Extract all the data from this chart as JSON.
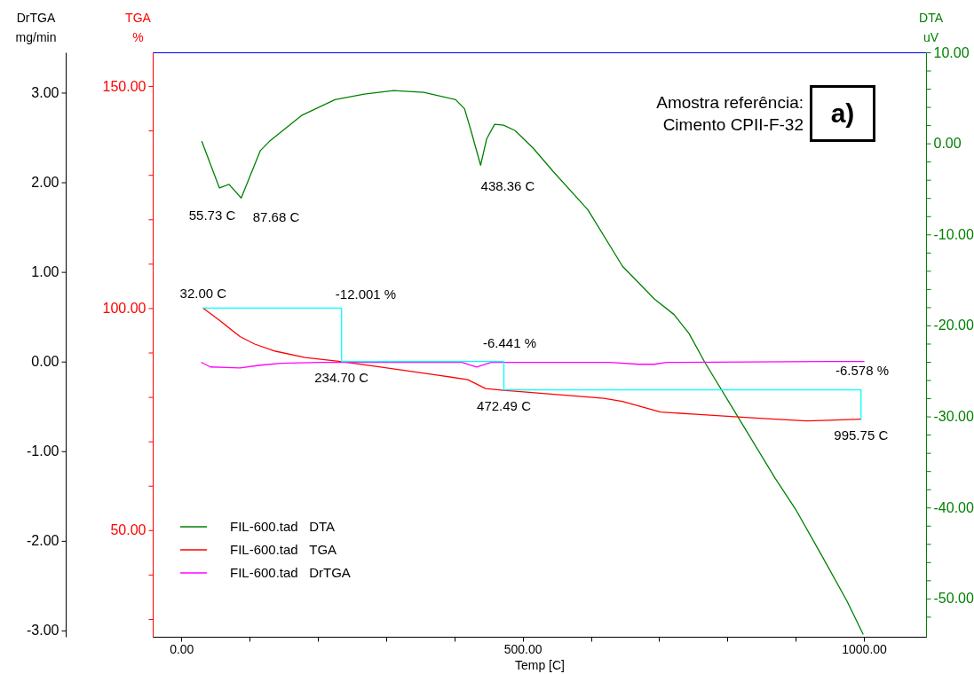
{
  "chart_data": {
    "type": "line",
    "xlabel": "Temp  [C]",
    "ylabel": "TGA\n%",
    "y2label": "DTA\nuV",
    "y3label": "DrTGA\nmg/min",
    "xlim": [
      -42,
      1091
    ],
    "xticks": [
      {
        "value": 0,
        "label": "0.00"
      },
      {
        "value": 100,
        "label": null
      },
      {
        "value": 200,
        "label": null
      },
      {
        "value": 300,
        "label": null
      },
      {
        "value": 400,
        "label": null
      },
      {
        "value": 500,
        "label": "500.00"
      },
      {
        "value": 600,
        "label": null
      },
      {
        "value": 700,
        "label": null
      },
      {
        "value": 800,
        "label": null
      },
      {
        "value": 900,
        "label": null
      },
      {
        "value": 1000,
        "label": "1000.00"
      }
    ],
    "ylim": [
      26,
      157.6
    ],
    "yticks": [
      {
        "value": 30,
        "label": null
      },
      {
        "value": 40,
        "label": null
      },
      {
        "value": 50,
        "label": "50.00"
      },
      {
        "value": 60,
        "label": null
      },
      {
        "value": 70,
        "label": null
      },
      {
        "value": 80,
        "label": null
      },
      {
        "value": 90,
        "label": null
      },
      {
        "value": 100,
        "label": "100.00"
      },
      {
        "value": 110,
        "label": null
      },
      {
        "value": 120,
        "label": null
      },
      {
        "value": 130,
        "label": null
      },
      {
        "value": 140,
        "label": null
      },
      {
        "value": 150,
        "label": "150.00"
      }
    ],
    "y2lim": [
      -54.2,
      10
    ],
    "y2ticks": [
      {
        "value": -52,
        "label": null
      },
      {
        "value": -50,
        "label": "-50.00"
      },
      {
        "value": -48,
        "label": null
      },
      {
        "value": -46,
        "label": null
      },
      {
        "value": -44,
        "label": null
      },
      {
        "value": -42,
        "label": null
      },
      {
        "value": -40,
        "label": "-40.00"
      },
      {
        "value": -38,
        "label": null
      },
      {
        "value": -36,
        "label": null
      },
      {
        "value": -34,
        "label": null
      },
      {
        "value": -32,
        "label": null
      },
      {
        "value": -30,
        "label": "-30.00"
      },
      {
        "value": -28,
        "label": null
      },
      {
        "value": -26,
        "label": null
      },
      {
        "value": -24,
        "label": null
      },
      {
        "value": -22,
        "label": null
      },
      {
        "value": -20,
        "label": "-20.00"
      },
      {
        "value": -18,
        "label": null
      },
      {
        "value": -16,
        "label": null
      },
      {
        "value": -14,
        "label": null
      },
      {
        "value": -12,
        "label": null
      },
      {
        "value": -10,
        "label": "-10.00"
      },
      {
        "value": -8,
        "label": null
      },
      {
        "value": -6,
        "label": null
      },
      {
        "value": -4,
        "label": null
      },
      {
        "value": -2,
        "label": null
      },
      {
        "value": 0,
        "label": "0.00"
      },
      {
        "value": 2,
        "label": null
      },
      {
        "value": 4,
        "label": null
      },
      {
        "value": 6,
        "label": null
      },
      {
        "value": 8,
        "label": null
      },
      {
        "value": 10,
        "label": "10.00"
      }
    ],
    "y3lim": [
      -3.07,
      3.45
    ],
    "y3ticks": [
      {
        "value": -3,
        "label": "-3.00"
      },
      {
        "value": -2,
        "label": "-2.00"
      },
      {
        "value": -1,
        "label": "-1.00"
      },
      {
        "value": 0,
        "label": "0.00"
      },
      {
        "value": 1,
        "label": "1.00"
      },
      {
        "value": 2,
        "label": "2.00"
      },
      {
        "value": 3,
        "label": "3.00"
      }
    ],
    "legend": "bottom left",
    "series": [
      {
        "name": "FIL-600.tad   DTA",
        "color": "#008000",
        "axis": "y2",
        "x": [
          30,
          55.73,
          69.8,
          87.68,
          115.7,
          128.7,
          176.9,
          225,
          267.9,
          310.8,
          355,
          401.8,
          414.8,
          423.9,
          438.36,
          447.3,
          459,
          472,
          488.9,
          515,
          544.9,
          595.6,
          646.3,
          693.1,
          721.7,
          743.8,
          767.2,
          823.1,
          870,
          899.9,
          937.6,
          975.3,
          998.7
        ],
        "values": [
          0.2,
          -4.9,
          -4.5,
          -6.0,
          -0.8,
          0.2,
          3.1,
          4.8,
          5.4,
          5.8,
          5.6,
          4.8,
          3.8,
          1.5,
          -2.4,
          0.5,
          2.1,
          2.0,
          1.4,
          -0.5,
          -3.1,
          -7.3,
          -13.5,
          -17.1,
          -18.8,
          -20.9,
          -24.1,
          -31.0,
          -36.8,
          -40.2,
          -45.2,
          -50.3,
          -53.9
        ]
      },
      {
        "name": "FIL-600.tad   TGA",
        "color": "#ff0000",
        "x": [
          32,
          55.5,
          85.8,
          107.5,
          137.8,
          181.1,
          233.2,
          289.6,
          376.2,
          419.6,
          445.6,
          471.7,
          488.9,
          619,
          646,
          702.2,
          753.7,
          846.6,
          916.2,
          939.4,
          995.2
        ],
        "values": [
          100,
          97.3,
          93.6,
          91.9,
          90.3,
          88.9,
          88.0,
          86.8,
          84.9,
          83.9,
          81.9,
          81.5,
          81.3,
          79.7,
          79.0,
          76.6,
          76.1,
          75.2,
          74.6,
          74.7,
          75.0
        ]
      },
      {
        "name": "FIL-600.tad   DrTGA",
        "color": "#ff00ff",
        "axis": "y3",
        "x": [
          29.5,
          42.5,
          85.8,
          116,
          146.5,
          202.9,
          245.8,
          411,
          432.6,
          445.6,
          454,
          628,
          670,
          693,
          711,
          944,
          1000
        ],
        "values": [
          -0.01,
          -0.06,
          -0.07,
          -0.04,
          -0.02,
          -0.01,
          -0.01,
          -0.01,
          -0.06,
          -0.03,
          -0.01,
          -0.01,
          -0.03,
          -0.03,
          -0.01,
          0,
          0
        ]
      },
      {
        "type": "step",
        "color": "#00ffff",
        "x": [
          32,
          234.7,
          472.49,
          995.75
        ],
        "values": [
          100,
          88,
          81.6,
          75.0
        ]
      }
    ],
    "annotations": [
      {
        "text": "32.00 C",
        "x": 32,
        "y": 100
      },
      {
        "text": "234.70 C",
        "x": 234.7,
        "y": 88
      },
      {
        "text": "472.49 C",
        "x": 472.49,
        "y": 81.6
      },
      {
        "text": "995.75 C",
        "x": 995.75,
        "y": 75.0
      },
      "55.73 C",
      "87.68 C",
      "438.36 C",
      "-12.001 %",
      "-6.441 %",
      "-6.578 %",
      "Amostra referência:\nCimento CPII-F-32",
      "a)"
    ]
  }
}
